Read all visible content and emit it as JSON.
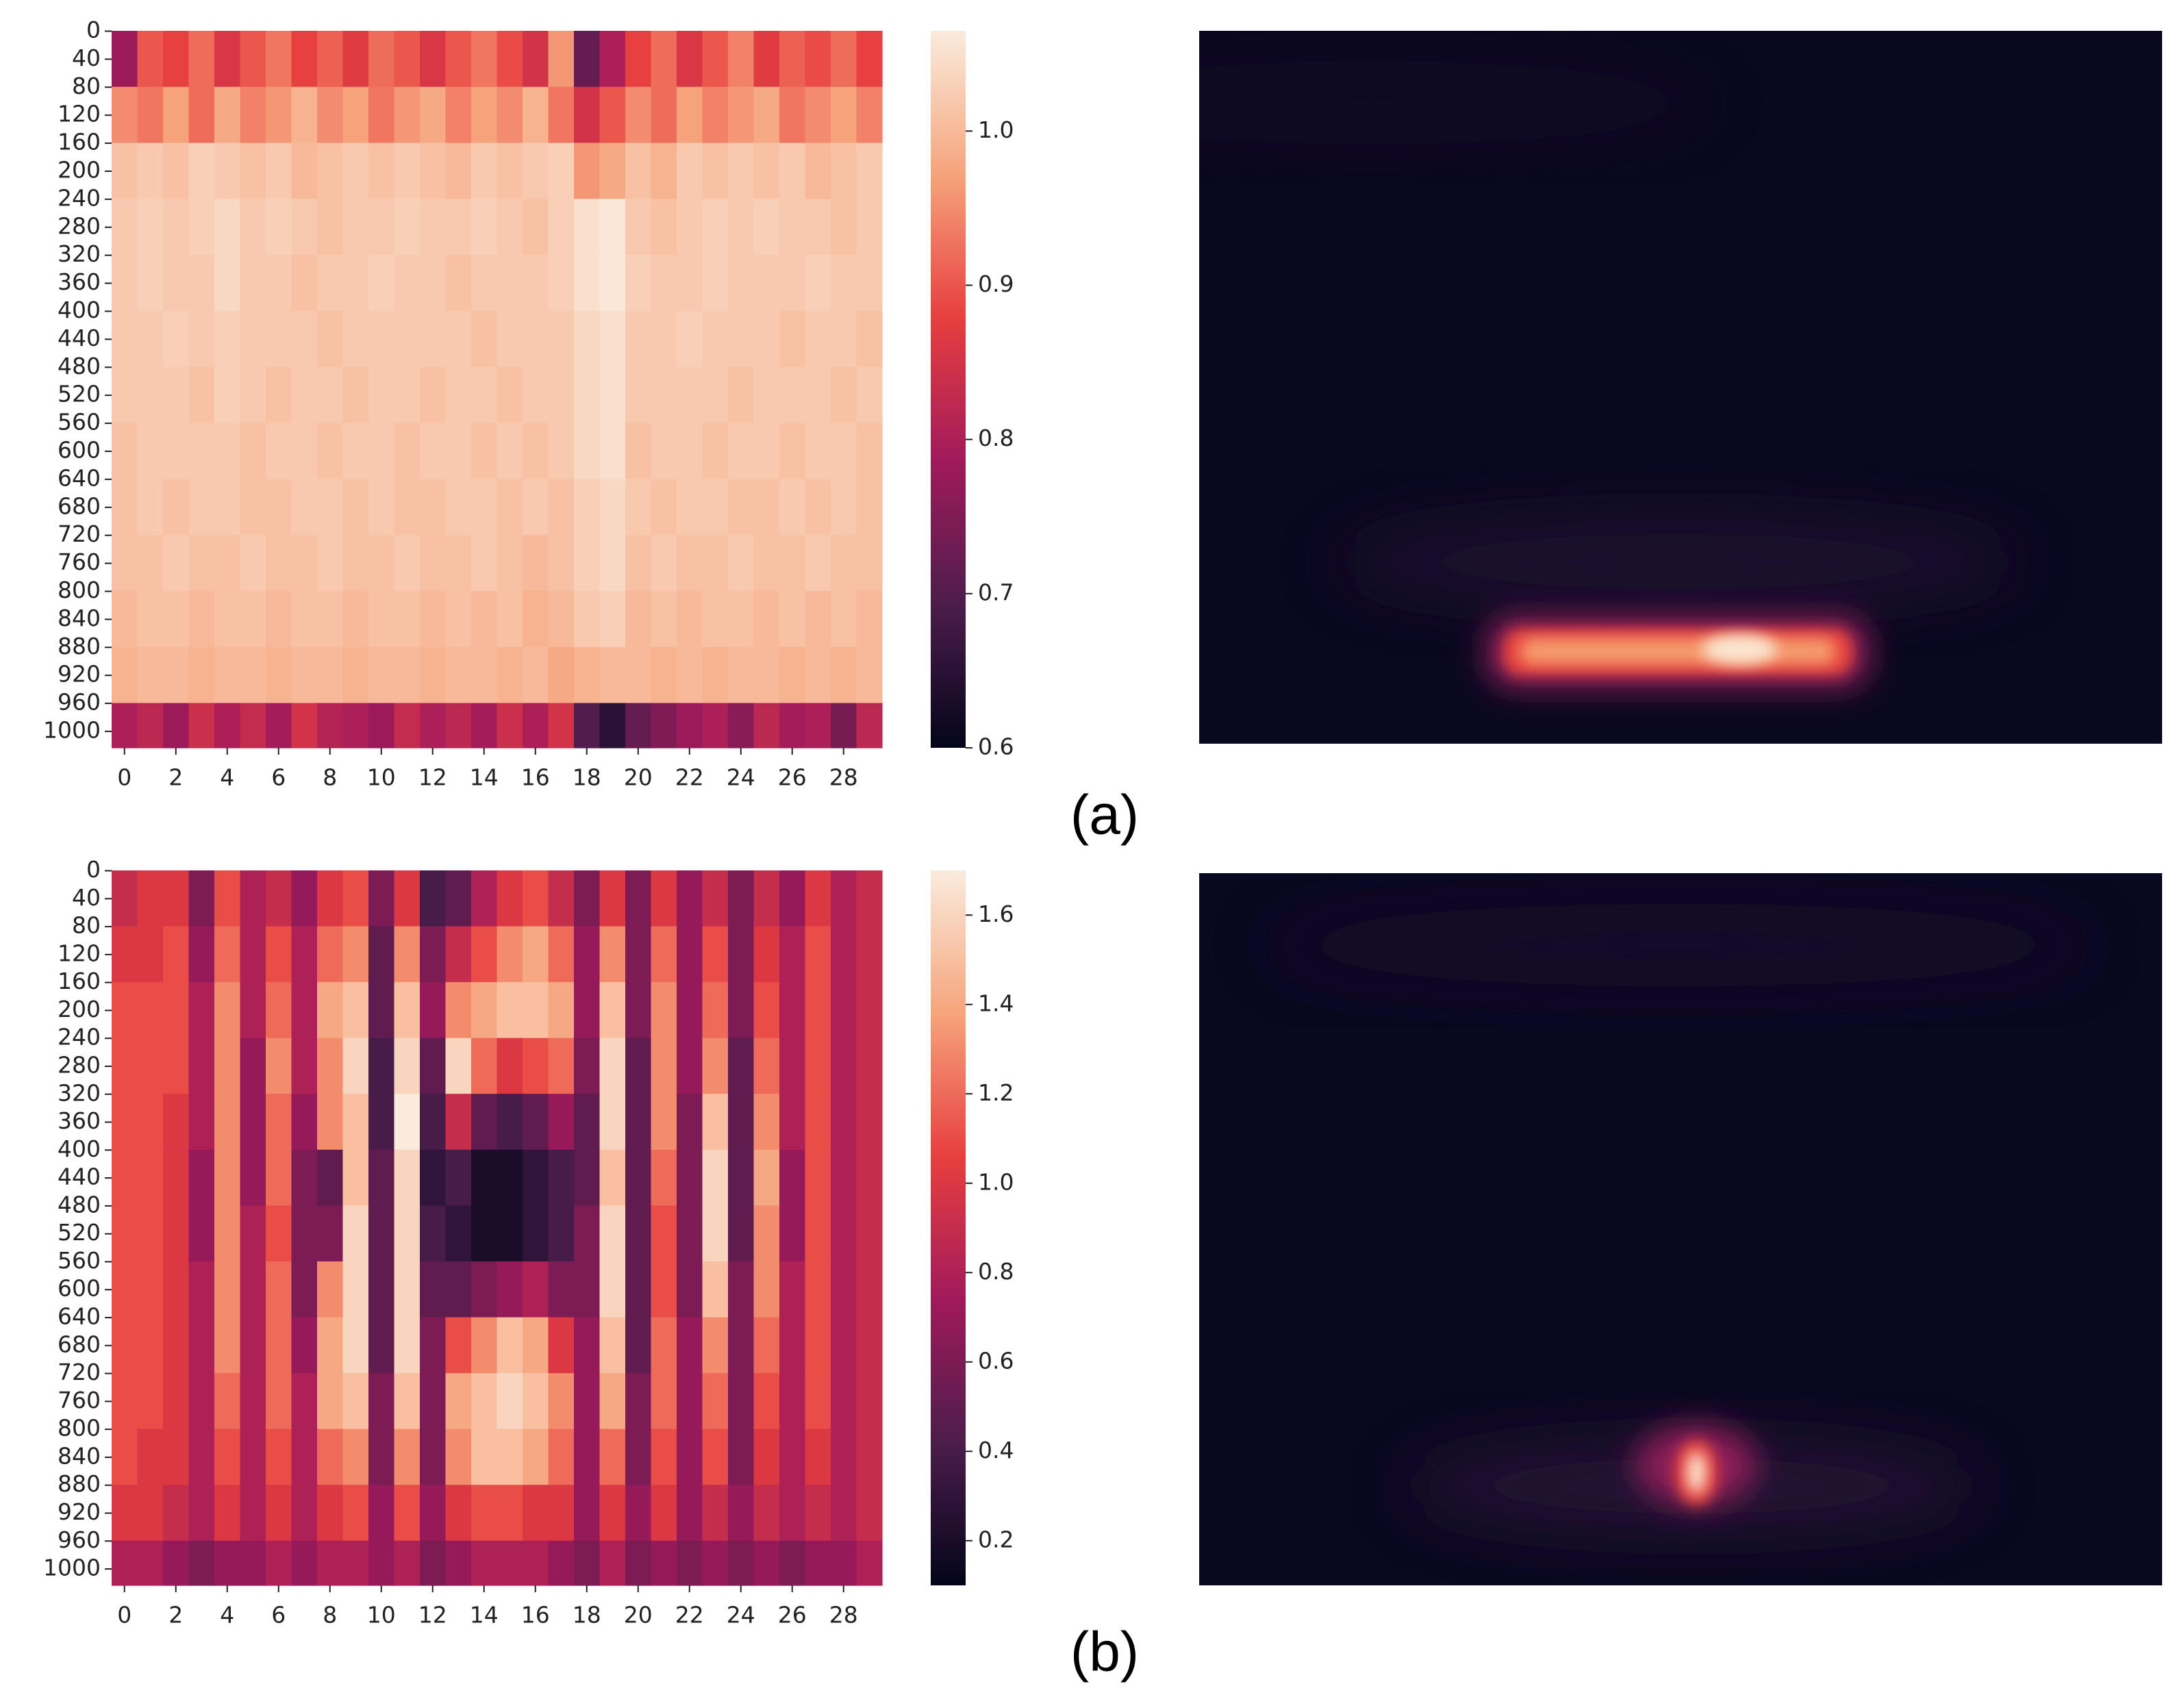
{
  "chart_data": [
    {
      "type": "heatmap",
      "label": "(a)",
      "categories": [
        0,
        null,
        2,
        null,
        4,
        null,
        6,
        null,
        8,
        null,
        10,
        null,
        12,
        null,
        14,
        null,
        16,
        null,
        18,
        null,
        20,
        null,
        22,
        null,
        24,
        null,
        26,
        null,
        28,
        null
      ],
      "row_edges": [
        0,
        80,
        160,
        240,
        320,
        400,
        480,
        560,
        640,
        720,
        800,
        880,
        960,
        1024
      ],
      "ylim": [
        0,
        1024
      ],
      "yticks": [
        0,
        40,
        80,
        120,
        160,
        200,
        240,
        280,
        320,
        360,
        400,
        440,
        480,
        520,
        560,
        600,
        640,
        680,
        720,
        760,
        800,
        840,
        880,
        920,
        960,
        1000
      ],
      "clim": [
        0.6,
        1.065
      ],
      "cticks": [
        0.6,
        0.7,
        0.8,
        0.9,
        {
          "value": 1,
          "label": "1.0"
        }
      ],
      "colorscale": [
        "#03051a",
        "#4c1d4b",
        "#a11a5b",
        "#e83f3f",
        "#f6a47c",
        "#faebdd"
      ],
      "values": [
        [
          0.78,
          0.9,
          0.88,
          0.92,
          0.86,
          0.9,
          0.93,
          0.88,
          0.91,
          0.87,
          0.92,
          0.9,
          0.86,
          0.9,
          0.93,
          0.89,
          0.85,
          0.96,
          0.72,
          0.8,
          0.88,
          0.92,
          0.86,
          0.9,
          0.94,
          0.87,
          0.91,
          0.89,
          0.92,
          0.88
        ],
        [
          0.95,
          0.93,
          0.97,
          0.92,
          0.98,
          0.94,
          0.96,
          0.99,
          0.95,
          0.97,
          0.93,
          0.96,
          0.98,
          0.94,
          0.97,
          0.95,
          0.99,
          0.93,
          0.85,
          0.9,
          0.95,
          0.92,
          0.97,
          0.94,
          0.96,
          0.98,
          0.93,
          0.95,
          0.97,
          0.94
        ],
        [
          1.01,
          1.02,
          1.01,
          1.03,
          1.02,
          1.01,
          1.02,
          1.0,
          1.01,
          1.02,
          1.01,
          1.02,
          1.01,
          1.0,
          1.02,
          1.01,
          1.02,
          1.03,
          0.96,
          0.98,
          1.01,
          0.99,
          1.02,
          1.01,
          1.02,
          1.01,
          1.02,
          1.0,
          1.01,
          1.02
        ],
        [
          1.02,
          1.03,
          1.02,
          1.03,
          1.04,
          1.02,
          1.03,
          1.02,
          1.01,
          1.02,
          1.02,
          1.03,
          1.02,
          1.02,
          1.03,
          1.02,
          1.01,
          1.03,
          1.05,
          1.06,
          1.02,
          1.01,
          1.02,
          1.03,
          1.02,
          1.03,
          1.02,
          1.02,
          1.01,
          1.02
        ],
        [
          1.02,
          1.03,
          1.02,
          1.02,
          1.04,
          1.02,
          1.02,
          1.01,
          1.02,
          1.02,
          1.03,
          1.02,
          1.02,
          1.01,
          1.02,
          1.02,
          1.02,
          1.03,
          1.05,
          1.06,
          1.03,
          1.02,
          1.02,
          1.03,
          1.02,
          1.02,
          1.02,
          1.03,
          1.02,
          1.02
        ],
        [
          1.02,
          1.02,
          1.03,
          1.02,
          1.03,
          1.02,
          1.02,
          1.02,
          1.01,
          1.02,
          1.02,
          1.02,
          1.02,
          1.02,
          1.01,
          1.02,
          1.02,
          1.02,
          1.04,
          1.05,
          1.02,
          1.02,
          1.03,
          1.02,
          1.02,
          1.02,
          1.01,
          1.02,
          1.02,
          1.01
        ],
        [
          1.02,
          1.02,
          1.02,
          1.01,
          1.03,
          1.02,
          1.01,
          1.02,
          1.02,
          1.01,
          1.02,
          1.02,
          1.01,
          1.02,
          1.02,
          1.01,
          1.02,
          1.02,
          1.04,
          1.05,
          1.02,
          1.02,
          1.02,
          1.02,
          1.01,
          1.02,
          1.02,
          1.02,
          1.01,
          1.02
        ],
        [
          1.01,
          1.02,
          1.02,
          1.02,
          1.02,
          1.01,
          1.02,
          1.02,
          1.01,
          1.02,
          1.02,
          1.01,
          1.02,
          1.02,
          1.01,
          1.02,
          1.01,
          1.02,
          1.04,
          1.05,
          1.01,
          1.02,
          1.02,
          1.01,
          1.02,
          1.02,
          1.01,
          1.02,
          1.02,
          1.01
        ],
        [
          1.01,
          1.02,
          1.01,
          1.02,
          1.02,
          1.01,
          1.01,
          1.02,
          1.02,
          1.01,
          1.02,
          1.01,
          1.01,
          1.02,
          1.02,
          1.01,
          1.02,
          1.01,
          1.03,
          1.04,
          1.02,
          1.01,
          1.02,
          1.02,
          1.01,
          1.01,
          1.02,
          1.01,
          1.02,
          1.01
        ],
        [
          1.01,
          1.01,
          1.02,
          1.01,
          1.01,
          1.02,
          1.01,
          1.01,
          1.02,
          1.01,
          1.01,
          1.02,
          1.01,
          1.01,
          1.02,
          1.01,
          1.0,
          1.01,
          1.03,
          1.04,
          1.01,
          1.02,
          1.01,
          1.01,
          1.02,
          1.01,
          1.01,
          1.02,
          1.01,
          1.01
        ],
        [
          1.0,
          1.01,
          1.01,
          1.0,
          1.01,
          1.01,
          1.0,
          1.01,
          1.01,
          1.0,
          1.01,
          1.01,
          1.0,
          1.01,
          1.0,
          1.01,
          0.99,
          1.0,
          1.02,
          1.03,
          1.0,
          1.01,
          1.0,
          1.01,
          1.01,
          1.0,
          1.01,
          1.0,
          1.01,
          1.0
        ],
        [
          0.99,
          1.0,
          1.0,
          0.99,
          1.0,
          1.0,
          0.99,
          1.0,
          1.0,
          0.99,
          1.0,
          1.0,
          0.99,
          1.0,
          1.0,
          0.99,
          1.0,
          0.98,
          0.99,
          1.0,
          1.0,
          0.99,
          1.0,
          0.99,
          1.0,
          1.0,
          0.99,
          1.0,
          0.99,
          1.0
        ],
        [
          0.8,
          0.82,
          0.78,
          0.84,
          0.8,
          0.83,
          0.79,
          0.85,
          0.81,
          0.8,
          0.78,
          0.83,
          0.8,
          0.82,
          0.79,
          0.84,
          0.8,
          0.85,
          0.7,
          0.65,
          0.72,
          0.75,
          0.78,
          0.8,
          0.76,
          0.82,
          0.79,
          0.8,
          0.74,
          0.82
        ]
      ]
    },
    {
      "type": "heatmap",
      "label": "(b)",
      "categories": [
        0,
        null,
        2,
        null,
        4,
        null,
        6,
        null,
        8,
        null,
        10,
        null,
        12,
        null,
        14,
        null,
        16,
        null,
        18,
        null,
        20,
        null,
        22,
        null,
        24,
        null,
        26,
        null,
        28,
        null
      ],
      "row_edges": [
        0,
        80,
        160,
        240,
        320,
        400,
        480,
        560,
        640,
        720,
        800,
        880,
        960,
        1024
      ],
      "ylim": [
        0,
        1024
      ],
      "yticks": [
        0,
        40,
        80,
        120,
        160,
        200,
        240,
        280,
        320,
        360,
        400,
        440,
        480,
        520,
        560,
        600,
        640,
        680,
        720,
        760,
        800,
        840,
        880,
        920,
        960,
        1000
      ],
      "clim": [
        0.1,
        1.7
      ],
      "cticks": [
        0.2,
        0.4,
        0.6,
        0.8,
        {
          "value": 1,
          "label": "1.0"
        },
        1.2,
        1.4,
        1.6
      ],
      "colorscale": [
        "#03051a",
        "#4c1d4b",
        "#a11a5b",
        "#e83f3f",
        "#f6a47c",
        "#faebdd"
      ],
      "values": [
        [
          0.9,
          1.0,
          1.0,
          0.6,
          1.1,
          0.8,
          0.9,
          0.7,
          1.0,
          1.1,
          0.6,
          1.0,
          0.4,
          0.5,
          0.8,
          1.0,
          1.1,
          0.9,
          0.6,
          1.0,
          0.6,
          1.0,
          0.7,
          0.9,
          0.6,
          0.9,
          0.7,
          1.0,
          0.8,
          0.9
        ],
        [
          1.0,
          1.0,
          1.1,
          0.7,
          1.2,
          0.8,
          1.1,
          0.8,
          1.2,
          1.3,
          0.5,
          1.3,
          0.6,
          0.9,
          1.1,
          1.3,
          1.4,
          1.2,
          0.7,
          1.3,
          0.6,
          1.2,
          0.7,
          1.1,
          0.6,
          1.0,
          0.8,
          1.1,
          0.8,
          0.9
        ],
        [
          1.1,
          1.1,
          1.1,
          0.8,
          1.3,
          0.8,
          1.2,
          0.8,
          1.4,
          1.5,
          0.5,
          1.5,
          0.7,
          1.3,
          1.4,
          1.5,
          1.5,
          1.4,
          0.7,
          1.5,
          0.6,
          1.3,
          0.7,
          1.2,
          0.6,
          1.1,
          0.8,
          1.1,
          0.8,
          0.9
        ],
        [
          1.1,
          1.1,
          1.1,
          0.8,
          1.3,
          0.7,
          1.3,
          0.8,
          1.3,
          1.6,
          0.4,
          1.6,
          0.5,
          1.6,
          1.2,
          1.0,
          1.1,
          1.2,
          0.6,
          1.6,
          0.5,
          1.3,
          0.7,
          1.3,
          0.5,
          1.2,
          0.8,
          1.1,
          0.8,
          0.9
        ],
        [
          1.1,
          1.1,
          1.0,
          0.8,
          1.3,
          0.7,
          1.2,
          0.7,
          1.3,
          1.5,
          0.4,
          1.7,
          0.4,
          0.9,
          0.5,
          0.4,
          0.5,
          0.7,
          0.5,
          1.6,
          0.5,
          1.3,
          0.6,
          1.5,
          0.5,
          1.3,
          0.8,
          1.1,
          0.8,
          0.9
        ],
        [
          1.1,
          1.1,
          1.0,
          0.7,
          1.3,
          0.7,
          1.2,
          0.6,
          0.5,
          1.5,
          0.5,
          1.6,
          0.3,
          0.4,
          0.2,
          0.2,
          0.3,
          0.4,
          0.5,
          1.5,
          0.5,
          1.2,
          0.6,
          1.6,
          0.5,
          1.4,
          0.7,
          1.1,
          0.8,
          0.9
        ],
        [
          1.1,
          1.1,
          1.0,
          0.7,
          1.3,
          0.8,
          1.1,
          0.6,
          0.6,
          1.6,
          0.5,
          1.6,
          0.4,
          0.3,
          0.2,
          0.2,
          0.3,
          0.4,
          0.6,
          1.6,
          0.5,
          1.1,
          0.6,
          1.6,
          0.5,
          1.3,
          0.7,
          1.1,
          0.8,
          0.9
        ],
        [
          1.1,
          1.1,
          1.0,
          0.8,
          1.3,
          0.8,
          1.2,
          0.6,
          1.3,
          1.6,
          0.5,
          1.6,
          0.5,
          0.5,
          0.6,
          0.7,
          0.8,
          0.6,
          0.6,
          1.6,
          0.5,
          1.1,
          0.6,
          1.5,
          0.6,
          1.3,
          0.8,
          1.1,
          0.8,
          0.9
        ],
        [
          1.1,
          1.1,
          1.0,
          0.8,
          1.3,
          0.8,
          1.2,
          0.7,
          1.4,
          1.6,
          0.5,
          1.6,
          0.6,
          1.1,
          1.3,
          1.5,
          1.4,
          1.0,
          0.7,
          1.5,
          0.5,
          1.2,
          0.7,
          1.3,
          0.6,
          1.2,
          0.8,
          1.1,
          0.8,
          0.9
        ],
        [
          1.1,
          1.1,
          1.0,
          0.8,
          1.2,
          0.8,
          1.2,
          0.8,
          1.4,
          1.5,
          0.6,
          1.5,
          0.6,
          1.4,
          1.5,
          1.6,
          1.5,
          1.3,
          0.7,
          1.4,
          0.6,
          1.2,
          0.7,
          1.2,
          0.6,
          1.1,
          0.8,
          1.1,
          0.8,
          0.9
        ],
        [
          1.1,
          1.0,
          1.0,
          0.8,
          1.1,
          0.8,
          1.1,
          0.8,
          1.2,
          1.3,
          0.6,
          1.3,
          0.6,
          1.3,
          1.5,
          1.5,
          1.4,
          1.2,
          0.7,
          1.2,
          0.6,
          1.1,
          0.7,
          1.1,
          0.6,
          1.0,
          0.8,
          1.0,
          0.8,
          0.9
        ],
        [
          1.0,
          1.0,
          0.9,
          0.8,
          1.0,
          0.8,
          1.0,
          0.8,
          1.0,
          1.1,
          0.7,
          1.1,
          0.7,
          1.0,
          1.1,
          1.1,
          1.0,
          1.0,
          0.7,
          1.0,
          0.7,
          1.0,
          0.7,
          0.9,
          0.7,
          0.9,
          0.8,
          0.9,
          0.8,
          0.9
        ],
        [
          0.8,
          0.8,
          0.7,
          0.6,
          0.7,
          0.7,
          0.8,
          0.7,
          0.8,
          0.8,
          0.7,
          0.8,
          0.6,
          0.7,
          0.8,
          0.8,
          0.8,
          0.7,
          0.6,
          0.8,
          0.6,
          0.7,
          0.6,
          0.7,
          0.6,
          0.7,
          0.6,
          0.7,
          0.7,
          0.8
        ]
      ]
    }
  ]
}
